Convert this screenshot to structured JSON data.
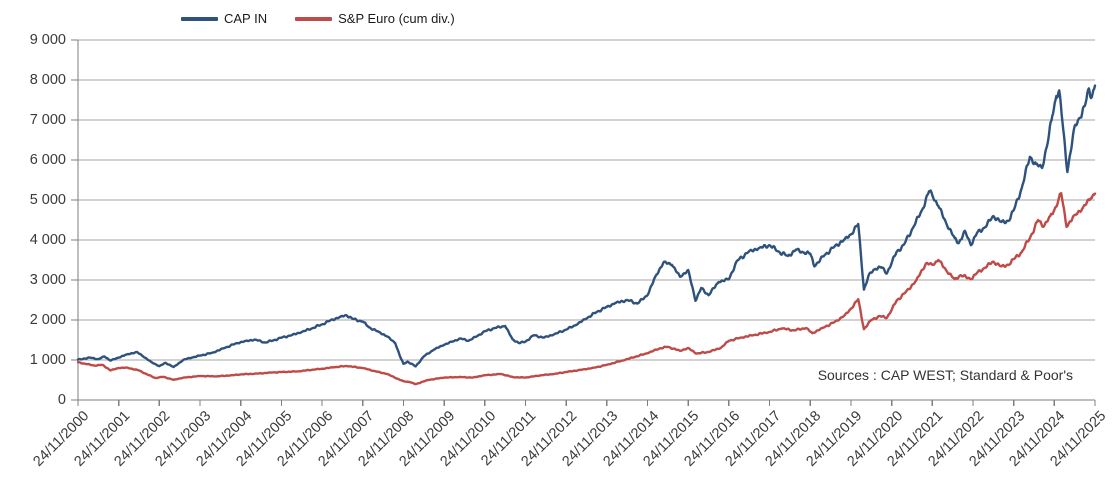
{
  "page": {
    "background": "#FFFFFF"
  },
  "legend": {
    "items": [
      {
        "label": "CAP IN",
        "color": "#2F527D"
      },
      {
        "label": "S&P Euro (cum div.)",
        "color": "#BE4B48"
      }
    ]
  },
  "source_note": "Sources : CAP WEST; Standard & Poor's",
  "chart_data": {
    "type": "line",
    "title": "",
    "xlabel": "",
    "ylabel": "",
    "grid": {
      "horizontal": true,
      "vertical": false,
      "color": "#A6A6A6"
    },
    "axis_color": "#7F7F7F",
    "legend_position": "top-left",
    "x_axis": {
      "unit": "years since 24/11/2000",
      "range": [
        0,
        25
      ],
      "tick_labels": [
        "24/11/2000",
        "24/11/2001",
        "24/11/2002",
        "24/11/2003",
        "24/11/2004",
        "24/11/2005",
        "24/11/2006",
        "24/11/2007",
        "24/11/2008",
        "24/11/2009",
        "24/11/2010",
        "24/11/2011",
        "24/11/2012",
        "24/11/2013",
        "24/11/2014",
        "24/11/2015",
        "24/11/2016",
        "24/11/2017",
        "24/11/2018",
        "24/11/2019",
        "24/11/2020",
        "24/11/2021",
        "24/11/2022",
        "24/11/2023",
        "24/11/2024",
        "24/11/2025"
      ]
    },
    "y_axis": {
      "range": [
        0,
        9000
      ],
      "ticks": [
        0,
        1000,
        2000,
        3000,
        4000,
        5000,
        6000,
        7000,
        8000,
        9000
      ],
      "tick_labels": [
        "0",
        "1 000",
        "2 000",
        "3 000",
        "4 000",
        "5 000",
        "6 000",
        "7 000",
        "8 000",
        "9 000"
      ]
    },
    "series": [
      {
        "name": "CAP IN",
        "color": "#2F527D",
        "points": [
          [
            0,
            1010
          ],
          [
            0.15,
            1035
          ],
          [
            0.3,
            1060
          ],
          [
            0.5,
            1020
          ],
          [
            0.65,
            1090
          ],
          [
            0.8,
            985
          ],
          [
            1,
            1060
          ],
          [
            1.2,
            1140
          ],
          [
            1.45,
            1200
          ],
          [
            1.6,
            1090
          ],
          [
            1.8,
            950
          ],
          [
            2,
            845
          ],
          [
            2.15,
            930
          ],
          [
            2.35,
            825
          ],
          [
            2.6,
            1010
          ],
          [
            2.8,
            1060
          ],
          [
            3,
            1110
          ],
          [
            3.3,
            1180
          ],
          [
            3.6,
            1300
          ],
          [
            3.9,
            1420
          ],
          [
            4.1,
            1470
          ],
          [
            4.35,
            1510
          ],
          [
            4.6,
            1435
          ],
          [
            4.8,
            1490
          ],
          [
            5,
            1560
          ],
          [
            5.25,
            1620
          ],
          [
            5.5,
            1700
          ],
          [
            5.75,
            1790
          ],
          [
            6,
            1890
          ],
          [
            6.2,
            1990
          ],
          [
            6.45,
            2080
          ],
          [
            6.6,
            2120
          ],
          [
            6.75,
            2030
          ],
          [
            7,
            1960
          ],
          [
            7.15,
            1820
          ],
          [
            7.4,
            1700
          ],
          [
            7.6,
            1590
          ],
          [
            7.8,
            1420
          ],
          [
            7.92,
            1080
          ],
          [
            8,
            905
          ],
          [
            8.1,
            960
          ],
          [
            8.3,
            840
          ],
          [
            8.5,
            1090
          ],
          [
            8.75,
            1260
          ],
          [
            9,
            1380
          ],
          [
            9.2,
            1460
          ],
          [
            9.4,
            1540
          ],
          [
            9.6,
            1480
          ],
          [
            9.8,
            1590
          ],
          [
            10,
            1720
          ],
          [
            10.25,
            1800
          ],
          [
            10.5,
            1850
          ],
          [
            10.68,
            1520
          ],
          [
            10.85,
            1420
          ],
          [
            11,
            1460
          ],
          [
            11.2,
            1620
          ],
          [
            11.45,
            1560
          ],
          [
            11.7,
            1640
          ],
          [
            12,
            1760
          ],
          [
            12.25,
            1880
          ],
          [
            12.5,
            2040
          ],
          [
            12.75,
            2200
          ],
          [
            13,
            2330
          ],
          [
            13.2,
            2420
          ],
          [
            13.5,
            2500
          ],
          [
            13.75,
            2410
          ],
          [
            14,
            2620
          ],
          [
            14.2,
            3100
          ],
          [
            14.4,
            3450
          ],
          [
            14.6,
            3380
          ],
          [
            14.8,
            3080
          ],
          [
            15,
            3250
          ],
          [
            15.18,
            2480
          ],
          [
            15.32,
            2800
          ],
          [
            15.5,
            2620
          ],
          [
            15.75,
            2950
          ],
          [
            16,
            3020
          ],
          [
            16.2,
            3480
          ],
          [
            16.5,
            3720
          ],
          [
            16.75,
            3800
          ],
          [
            17,
            3870
          ],
          [
            17.2,
            3720
          ],
          [
            17.45,
            3600
          ],
          [
            17.65,
            3760
          ],
          [
            17.85,
            3680
          ],
          [
            18,
            3660
          ],
          [
            18.1,
            3340
          ],
          [
            18.35,
            3620
          ],
          [
            18.6,
            3840
          ],
          [
            18.85,
            4020
          ],
          [
            19,
            4140
          ],
          [
            19.18,
            4400
          ],
          [
            19.32,
            2760
          ],
          [
            19.45,
            3150
          ],
          [
            19.6,
            3280
          ],
          [
            19.75,
            3320
          ],
          [
            19.88,
            3160
          ],
          [
            20,
            3420
          ],
          [
            20.12,
            3700
          ],
          [
            20.3,
            3880
          ],
          [
            20.55,
            4350
          ],
          [
            20.75,
            4750
          ],
          [
            20.92,
            5220
          ],
          [
            21,
            5120
          ],
          [
            21.15,
            4850
          ],
          [
            21.35,
            4400
          ],
          [
            21.55,
            4050
          ],
          [
            21.65,
            3920
          ],
          [
            21.8,
            4230
          ],
          [
            21.95,
            3870
          ],
          [
            22.1,
            4180
          ],
          [
            22.3,
            4320
          ],
          [
            22.5,
            4600
          ],
          [
            22.7,
            4450
          ],
          [
            22.88,
            4480
          ],
          [
            23,
            4740
          ],
          [
            23.2,
            5300
          ],
          [
            23.4,
            6080
          ],
          [
            23.55,
            5900
          ],
          [
            23.7,
            5800
          ],
          [
            23.85,
            6500
          ],
          [
            23.95,
            7100
          ],
          [
            24.05,
            7600
          ],
          [
            24.12,
            7740
          ],
          [
            24.2,
            6950
          ],
          [
            24.32,
            5700
          ],
          [
            24.5,
            6850
          ],
          [
            24.62,
            7050
          ],
          [
            24.75,
            7350
          ],
          [
            24.85,
            7790
          ],
          [
            24.92,
            7570
          ],
          [
            25,
            7860
          ]
        ]
      },
      {
        "name": "S&P Euro (cum div.)",
        "color": "#BE4B48",
        "points": [
          [
            0,
            945
          ],
          [
            0.2,
            900
          ],
          [
            0.4,
            860
          ],
          [
            0.6,
            880
          ],
          [
            0.8,
            740
          ],
          [
            1,
            800
          ],
          [
            1.2,
            810
          ],
          [
            1.5,
            740
          ],
          [
            1.7,
            640
          ],
          [
            1.9,
            550
          ],
          [
            2.1,
            580
          ],
          [
            2.35,
            505
          ],
          [
            2.6,
            560
          ],
          [
            3,
            600
          ],
          [
            3.4,
            590
          ],
          [
            3.8,
            620
          ],
          [
            4,
            640
          ],
          [
            4.4,
            660
          ],
          [
            4.8,
            690
          ],
          [
            5,
            700
          ],
          [
            5.4,
            715
          ],
          [
            5.8,
            760
          ],
          [
            6,
            780
          ],
          [
            6.3,
            820
          ],
          [
            6.6,
            850
          ],
          [
            7,
            800
          ],
          [
            7.3,
            720
          ],
          [
            7.6,
            650
          ],
          [
            7.9,
            510
          ],
          [
            8,
            470
          ],
          [
            8.15,
            450
          ],
          [
            8.3,
            395
          ],
          [
            8.6,
            500
          ],
          [
            9,
            560
          ],
          [
            9.4,
            575
          ],
          [
            9.7,
            560
          ],
          [
            10,
            620
          ],
          [
            10.4,
            650
          ],
          [
            10.7,
            570
          ],
          [
            11,
            560
          ],
          [
            11.4,
            620
          ],
          [
            11.7,
            650
          ],
          [
            12,
            700
          ],
          [
            12.4,
            760
          ],
          [
            12.7,
            810
          ],
          [
            13,
            880
          ],
          [
            13.4,
            990
          ],
          [
            13.7,
            1080
          ],
          [
            14,
            1170
          ],
          [
            14.3,
            1290
          ],
          [
            14.5,
            1330
          ],
          [
            14.8,
            1230
          ],
          [
            15,
            1300
          ],
          [
            15.2,
            1160
          ],
          [
            15.5,
            1200
          ],
          [
            15.8,
            1300
          ],
          [
            16,
            1480
          ],
          [
            16.3,
            1560
          ],
          [
            16.6,
            1620
          ],
          [
            17,
            1700
          ],
          [
            17.3,
            1790
          ],
          [
            17.6,
            1740
          ],
          [
            17.9,
            1800
          ],
          [
            18.05,
            1670
          ],
          [
            18.3,
            1800
          ],
          [
            18.6,
            1950
          ],
          [
            18.85,
            2120
          ],
          [
            19,
            2280
          ],
          [
            19.18,
            2520
          ],
          [
            19.32,
            1770
          ],
          [
            19.5,
            2000
          ],
          [
            19.7,
            2100
          ],
          [
            19.88,
            2050
          ],
          [
            20,
            2250
          ],
          [
            20.12,
            2480
          ],
          [
            20.35,
            2700
          ],
          [
            20.6,
            2980
          ],
          [
            20.85,
            3420
          ],
          [
            21,
            3380
          ],
          [
            21.15,
            3500
          ],
          [
            21.35,
            3230
          ],
          [
            21.55,
            3020
          ],
          [
            21.7,
            3120
          ],
          [
            21.95,
            3020
          ],
          [
            22.1,
            3180
          ],
          [
            22.3,
            3310
          ],
          [
            22.5,
            3460
          ],
          [
            22.7,
            3340
          ],
          [
            22.9,
            3390
          ],
          [
            23,
            3520
          ],
          [
            23.2,
            3700
          ],
          [
            23.4,
            4050
          ],
          [
            23.6,
            4500
          ],
          [
            23.73,
            4330
          ],
          [
            23.9,
            4600
          ],
          [
            24,
            4750
          ],
          [
            24.1,
            5000
          ],
          [
            24.17,
            5170
          ],
          [
            24.3,
            4330
          ],
          [
            24.5,
            4620
          ],
          [
            24.7,
            4800
          ],
          [
            24.9,
            5050
          ],
          [
            25,
            5160
          ]
        ]
      }
    ]
  }
}
